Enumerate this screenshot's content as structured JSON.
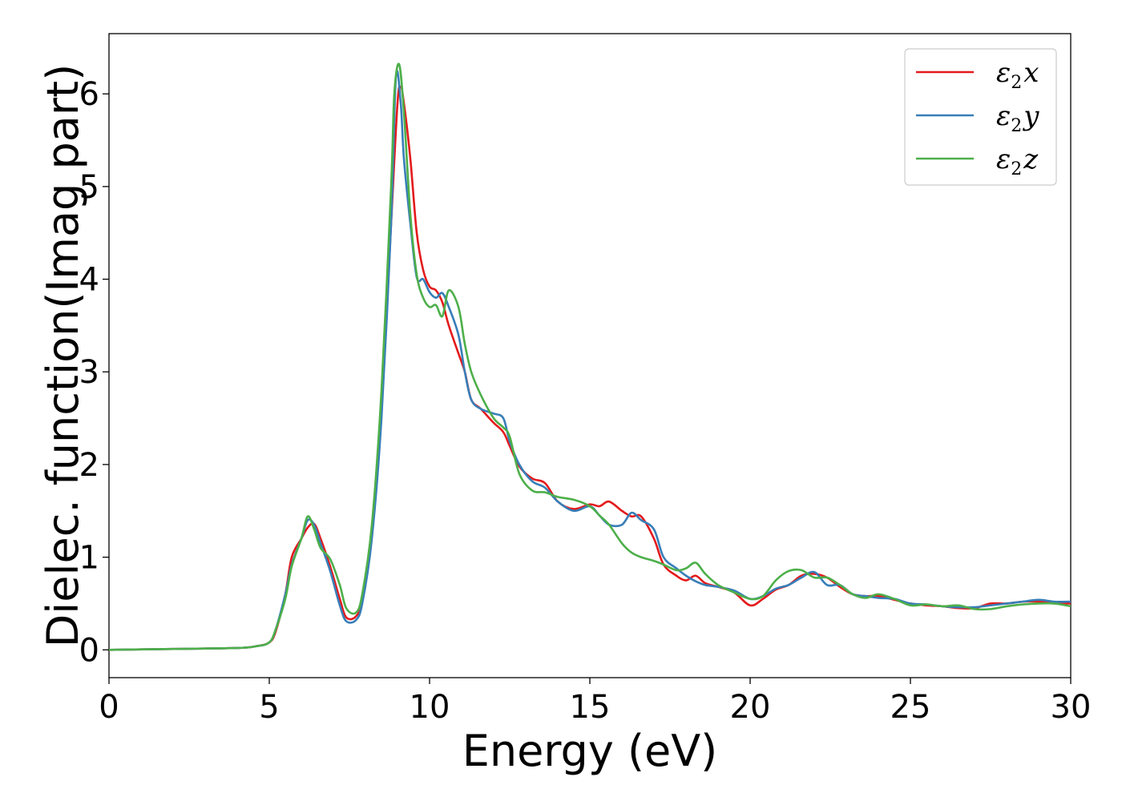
{
  "chart_data": {
    "type": "line",
    "xlabel": "Energy (eV)",
    "ylabel": "Dielec. function(Imag part)",
    "xlim": [
      0,
      30
    ],
    "ylim": [
      -0.3,
      6.65
    ],
    "xticks": [
      0,
      5,
      10,
      15,
      20,
      25,
      30
    ],
    "yticks": [
      0,
      1,
      2,
      3,
      4,
      5,
      6
    ],
    "grid": false,
    "legend_position": "top-right",
    "series": [
      {
        "name": "ε2x",
        "legend": {
          "base": "ε",
          "sub": "2",
          "var": "x"
        },
        "color": "#e41a1c",
        "x": [
          0,
          2,
          4,
          4.6,
          5.0,
          5.2,
          5.5,
          5.7,
          6.0,
          6.2,
          6.4,
          6.6,
          6.9,
          7.2,
          7.4,
          7.7,
          7.9,
          8.2,
          8.5,
          8.8,
          9.0,
          9.1,
          9.2,
          9.4,
          9.6,
          9.8,
          10.0,
          10.2,
          10.4,
          10.6,
          10.9,
          11.1,
          11.3,
          11.6,
          12.0,
          12.3,
          12.5,
          12.8,
          13.2,
          13.6,
          14.0,
          14.5,
          15.0,
          15.3,
          15.6,
          16.0,
          16.3,
          16.6,
          17.0,
          17.3,
          17.7,
          18.0,
          18.3,
          18.6,
          19.0,
          19.5,
          20.0,
          20.4,
          20.8,
          21.2,
          21.6,
          22.0,
          22.4,
          22.8,
          23.2,
          23.6,
          24.0,
          24.5,
          25.0,
          25.5,
          26.0,
          26.5,
          27.0,
          27.5,
          28.0,
          28.5,
          29.0,
          29.5,
          30.0
        ],
        "y": [
          0.0,
          0.01,
          0.02,
          0.04,
          0.08,
          0.2,
          0.6,
          1.0,
          1.2,
          1.32,
          1.36,
          1.2,
          0.9,
          0.55,
          0.35,
          0.36,
          0.55,
          1.3,
          2.6,
          4.6,
          5.9,
          6.07,
          5.9,
          5.3,
          4.5,
          4.1,
          3.92,
          3.88,
          3.75,
          3.5,
          3.2,
          3.0,
          2.7,
          2.6,
          2.45,
          2.35,
          2.2,
          1.98,
          1.85,
          1.8,
          1.6,
          1.52,
          1.57,
          1.55,
          1.6,
          1.5,
          1.44,
          1.44,
          1.2,
          0.92,
          0.8,
          0.75,
          0.8,
          0.72,
          0.68,
          0.62,
          0.48,
          0.55,
          0.65,
          0.7,
          0.8,
          0.82,
          0.78,
          0.68,
          0.6,
          0.58,
          0.58,
          0.54,
          0.5,
          0.48,
          0.47,
          0.45,
          0.45,
          0.5,
          0.5,
          0.52,
          0.52,
          0.5,
          0.5
        ]
      },
      {
        "name": "ε2y",
        "legend": {
          "base": "ε",
          "sub": "2",
          "var": "y"
        },
        "color": "#377eb8",
        "x": [
          0,
          2,
          4,
          4.6,
          5.0,
          5.2,
          5.5,
          5.7,
          6.0,
          6.2,
          6.4,
          6.6,
          6.9,
          7.2,
          7.4,
          7.7,
          7.9,
          8.2,
          8.5,
          8.8,
          8.95,
          9.1,
          9.2,
          9.4,
          9.6,
          9.8,
          10.0,
          10.2,
          10.4,
          10.6,
          10.9,
          11.1,
          11.3,
          11.6,
          12.0,
          12.3,
          12.5,
          12.8,
          13.2,
          13.6,
          14.0,
          14.5,
          15.0,
          15.3,
          15.6,
          16.0,
          16.3,
          16.6,
          17.0,
          17.3,
          17.7,
          18.0,
          18.3,
          18.6,
          19.0,
          19.5,
          20.0,
          20.4,
          20.8,
          21.2,
          21.6,
          22.0,
          22.4,
          22.8,
          23.2,
          23.6,
          24.0,
          24.5,
          25.0,
          25.5,
          26.0,
          26.5,
          27.0,
          27.5,
          28.0,
          28.5,
          29.0,
          29.5,
          30.0
        ],
        "y": [
          0.0,
          0.01,
          0.02,
          0.04,
          0.08,
          0.22,
          0.6,
          0.92,
          1.2,
          1.4,
          1.35,
          1.15,
          0.85,
          0.48,
          0.31,
          0.32,
          0.5,
          1.2,
          2.5,
          4.6,
          6.18,
          5.9,
          5.3,
          4.6,
          4.02,
          4.0,
          3.86,
          3.8,
          3.85,
          3.7,
          3.4,
          3.0,
          2.7,
          2.6,
          2.55,
          2.5,
          2.25,
          2.0,
          1.82,
          1.75,
          1.6,
          1.5,
          1.55,
          1.45,
          1.35,
          1.35,
          1.48,
          1.4,
          1.3,
          1.0,
          0.88,
          0.8,
          0.74,
          0.7,
          0.68,
          0.64,
          0.55,
          0.58,
          0.66,
          0.7,
          0.78,
          0.84,
          0.7,
          0.7,
          0.6,
          0.58,
          0.56,
          0.55,
          0.5,
          0.49,
          0.47,
          0.46,
          0.46,
          0.48,
          0.5,
          0.52,
          0.54,
          0.52,
          0.52
        ]
      },
      {
        "name": "ε2z",
        "legend": {
          "base": "ε",
          "sub": "2",
          "var": "z"
        },
        "color": "#4daf4a",
        "x": [
          0,
          2,
          4,
          4.6,
          5.0,
          5.2,
          5.5,
          5.7,
          6.0,
          6.2,
          6.4,
          6.6,
          6.9,
          7.2,
          7.4,
          7.7,
          7.9,
          8.2,
          8.5,
          8.8,
          8.9,
          9.05,
          9.2,
          9.4,
          9.6,
          9.8,
          10.0,
          10.2,
          10.4,
          10.6,
          10.9,
          11.1,
          11.3,
          11.6,
          12.0,
          12.3,
          12.5,
          12.8,
          13.2,
          13.6,
          14.0,
          14.5,
          15.0,
          15.3,
          15.6,
          16.0,
          16.3,
          16.6,
          17.0,
          17.3,
          17.7,
          18.0,
          18.3,
          18.6,
          19.0,
          19.5,
          20.0,
          20.4,
          20.8,
          21.2,
          21.6,
          22.0,
          22.4,
          22.8,
          23.2,
          23.6,
          24.0,
          24.5,
          25.0,
          25.5,
          26.0,
          26.5,
          27.0,
          27.5,
          28.0,
          28.5,
          29.0,
          29.5,
          30.0
        ],
        "y": [
          0.0,
          0.01,
          0.02,
          0.04,
          0.08,
          0.22,
          0.55,
          0.9,
          1.2,
          1.44,
          1.3,
          1.1,
          0.98,
          0.7,
          0.45,
          0.4,
          0.6,
          1.35,
          2.8,
          5.0,
          6.0,
          6.32,
          5.8,
          4.7,
          4.05,
          3.8,
          3.7,
          3.72,
          3.6,
          3.88,
          3.7,
          3.3,
          3.0,
          2.75,
          2.5,
          2.4,
          2.3,
          1.9,
          1.72,
          1.7,
          1.65,
          1.62,
          1.55,
          1.45,
          1.35,
          1.15,
          1.05,
          1.0,
          0.96,
          0.92,
          0.86,
          0.88,
          0.94,
          0.82,
          0.7,
          0.62,
          0.55,
          0.58,
          0.75,
          0.85,
          0.86,
          0.78,
          0.78,
          0.7,
          0.6,
          0.56,
          0.6,
          0.55,
          0.48,
          0.49,
          0.47,
          0.48,
          0.44,
          0.44,
          0.47,
          0.49,
          0.5,
          0.5,
          0.47
        ]
      }
    ]
  }
}
